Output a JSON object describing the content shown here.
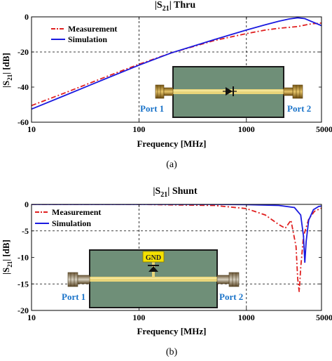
{
  "chart_data": [
    {
      "type": "line",
      "title": "|S21| Thru",
      "title_main": "|S",
      "title_sub": "21",
      "title_rest": "| Thru",
      "xlabel": "Frequency [MHz]",
      "ylabel": "|S21| [dB]",
      "ylabel_main": "|S",
      "ylabel_sub": "21",
      "ylabel_rest": "| [dB]",
      "x_scale": "log",
      "xlim": [
        10,
        5000
      ],
      "ylim": [
        -60,
        0
      ],
      "xticks": [
        10,
        100,
        1000,
        5000
      ],
      "xtick_labels": [
        "10",
        "100",
        "1000",
        "5000"
      ],
      "yticks": [
        -60,
        -40,
        -20,
        0
      ],
      "ytick_labels": [
        "-60",
        "-40",
        "-20",
        "0"
      ],
      "grid": "dashed reference lines at x=100, x=1000 and y=-20",
      "ref_x": [
        100,
        1000
      ],
      "ref_y": [
        -20
      ],
      "legend_position": "top-left",
      "series": [
        {
          "name": "Measurement",
          "style": "dashdot",
          "color": "#e02020",
          "x": [
            10,
            20,
            50,
            100,
            200,
            500,
            1000,
            1500,
            2000,
            3000,
            4000,
            5000
          ],
          "y": [
            -50.5,
            -43.5,
            -34,
            -27,
            -20.5,
            -13.5,
            -9.5,
            -7.5,
            -6.5,
            -5.5,
            -4,
            -3.5
          ]
        },
        {
          "name": "Simulation",
          "style": "solid",
          "color": "#1a1ae0",
          "x": [
            10,
            20,
            50,
            100,
            200,
            500,
            1000,
            1500,
            2000,
            2500,
            3000,
            3500,
            4000,
            5000
          ],
          "y": [
            -52.5,
            -45,
            -35,
            -27.5,
            -20.5,
            -13,
            -7.5,
            -4.5,
            -2.5,
            -1.2,
            -0.5,
            -1,
            -2.5,
            -5
          ]
        }
      ],
      "inset": {
        "port_left": "Port 1",
        "port_right": "Port 2"
      }
    },
    {
      "type": "line",
      "title": "|S21| Shunt",
      "title_main": "|S",
      "title_sub": "21",
      "title_rest": "| Shunt",
      "xlabel": "Frequency [MHz]",
      "ylabel": "|S21| [dB]",
      "ylabel_main": "|S",
      "ylabel_sub": "21",
      "ylabel_rest": "| [dB]",
      "x_scale": "log",
      "xlim": [
        10,
        5000
      ],
      "ylim": [
        -20,
        0
      ],
      "xticks": [
        10,
        100,
        1000,
        5000
      ],
      "xtick_labels": [
        "10",
        "100",
        "1000",
        "5000"
      ],
      "yticks": [
        -20,
        -15,
        -10,
        -5,
        0
      ],
      "ytick_labels": [
        "-20",
        "-15",
        "-10",
        "-5",
        "0"
      ],
      "grid": "dashed reference lines at x=100, x=1000 and y=-5, y=-15",
      "ref_x": [
        100,
        1000
      ],
      "ref_y": [
        -5,
        -15
      ],
      "legend_position": "top-left",
      "series": [
        {
          "name": "Measurement",
          "style": "dashdot",
          "color": "#e02020",
          "x": [
            10,
            100,
            500,
            1000,
            1500,
            2000,
            2300,
            2600,
            2900,
            3000,
            3100,
            3200,
            3400,
            3800,
            4300,
            5000
          ],
          "y": [
            0,
            0,
            -0.2,
            -0.8,
            -2,
            -3.8,
            -4.5,
            -3,
            -8,
            -14,
            -16.5,
            -12,
            -6,
            -2.8,
            -1.3,
            -0.7
          ]
        },
        {
          "name": "Simulation",
          "style": "solid",
          "color": "#1a1ae0",
          "x": [
            10,
            100,
            500,
            1000,
            2000,
            2800,
            3200,
            3400,
            3500,
            3600,
            3800,
            4200,
            4700,
            5000
          ],
          "y": [
            0,
            0,
            0,
            -0.05,
            -0.2,
            -0.6,
            -2,
            -6,
            -11,
            -7,
            -3,
            -1,
            -0.4,
            -0.3
          ]
        }
      ],
      "inset": {
        "gnd_label": "GND",
        "port_left": "Port 1",
        "port_right": "Port 2"
      }
    }
  ],
  "captions": [
    "(a)",
    "(b)"
  ]
}
